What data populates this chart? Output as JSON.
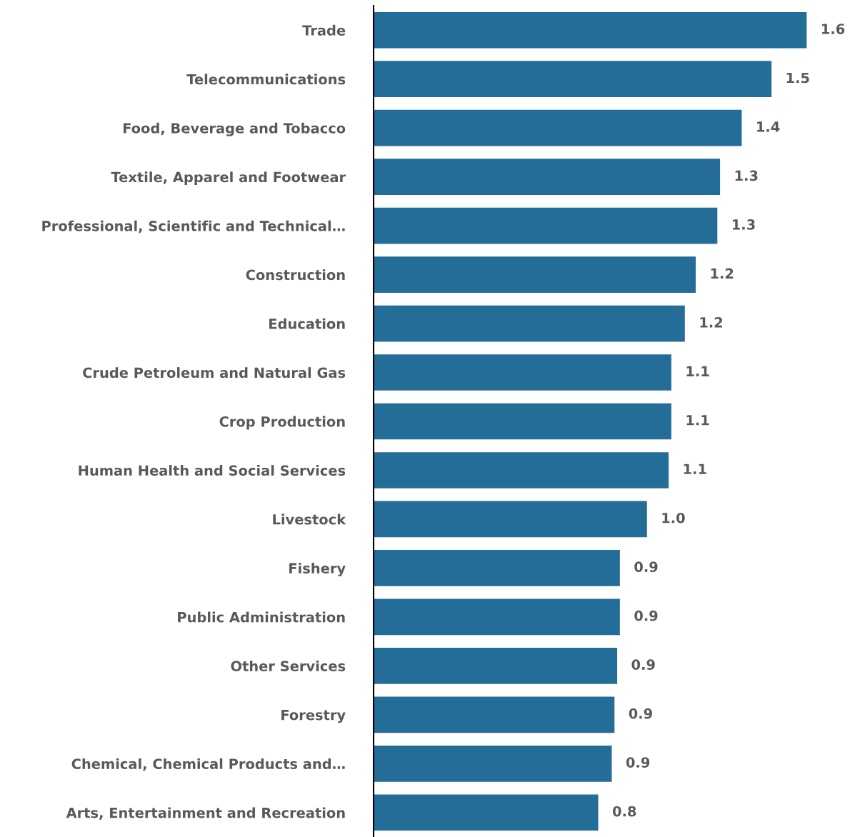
{
  "chart_data": {
    "type": "bar",
    "orientation": "horizontal",
    "categories": [
      "Trade",
      "Telecommunications",
      "Food, Beverage and Tobacco",
      "Textile, Apparel and Footwear",
      "Professional, Scientific and Technical…",
      "Construction",
      "Education",
      "Crude Petroleum and Natural Gas",
      "Crop Production",
      "Human Health and Social Services",
      "Livestock",
      "Fishery",
      "Public Administration",
      "Other Services",
      "Forestry",
      "Chemical, Chemical Products and…",
      "Arts, Entertainment and Recreation"
    ],
    "values": [
      1.6,
      1.47,
      1.36,
      1.28,
      1.27,
      1.19,
      1.15,
      1.1,
      1.1,
      1.09,
      1.01,
      0.91,
      0.91,
      0.9,
      0.89,
      0.88,
      0.83
    ],
    "value_labels": [
      "1.6",
      "1.5",
      "1.4",
      "1.3",
      "1.3",
      "1.2",
      "1.2",
      "1.1",
      "1.1",
      "1.1",
      "1.0",
      "0.9",
      "0.9",
      "0.9",
      "0.9",
      "0.9",
      "0.8"
    ],
    "color": "#256d99",
    "tick_labels": "y",
    "grid": false,
    "legend": false
  }
}
